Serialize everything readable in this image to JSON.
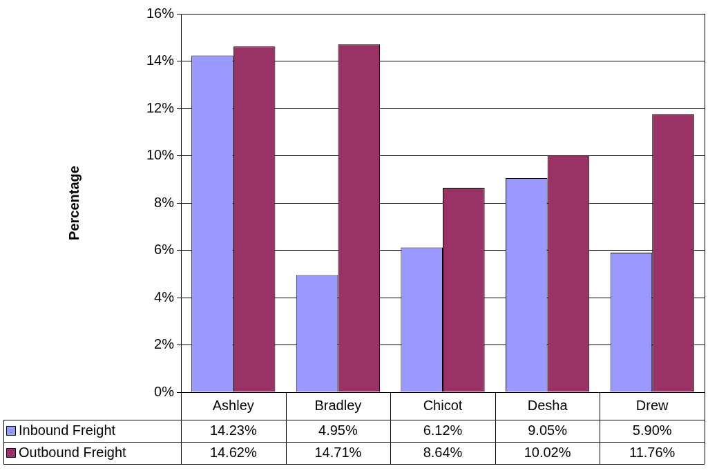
{
  "chart_data": {
    "type": "bar",
    "ylabel": "Percentage",
    "categories": [
      "Ashley",
      "Bradley",
      "Chicot",
      "Desha",
      "Drew"
    ],
    "series": [
      {
        "name": "Inbound Freight",
        "color": "#9999ff",
        "values": [
          14.23,
          4.95,
          6.12,
          9.05,
          5.9
        ],
        "value_labels": [
          "14.23%",
          "4.95%",
          "6.12%",
          "9.05%",
          "5.90%"
        ]
      },
      {
        "name": "Outbound Freight",
        "color": "#993366",
        "values": [
          14.62,
          14.71,
          8.64,
          10.02,
          11.76
        ],
        "value_labels": [
          "14.62%",
          "14.71%",
          "8.64%",
          "10.02%",
          "11.76%"
        ]
      }
    ],
    "ylim": [
      0,
      16
    ],
    "yticks": [
      {
        "value": 0,
        "label": "0%"
      },
      {
        "value": 2,
        "label": "2%"
      },
      {
        "value": 4,
        "label": "4%"
      },
      {
        "value": 6,
        "label": "6%"
      },
      {
        "value": 8,
        "label": "8%"
      },
      {
        "value": 10,
        "label": "10%"
      },
      {
        "value": 12,
        "label": "12%"
      },
      {
        "value": 14,
        "label": "14%"
      },
      {
        "value": 16,
        "label": "16%"
      }
    ],
    "grid": "y",
    "legend": "bottom left"
  }
}
